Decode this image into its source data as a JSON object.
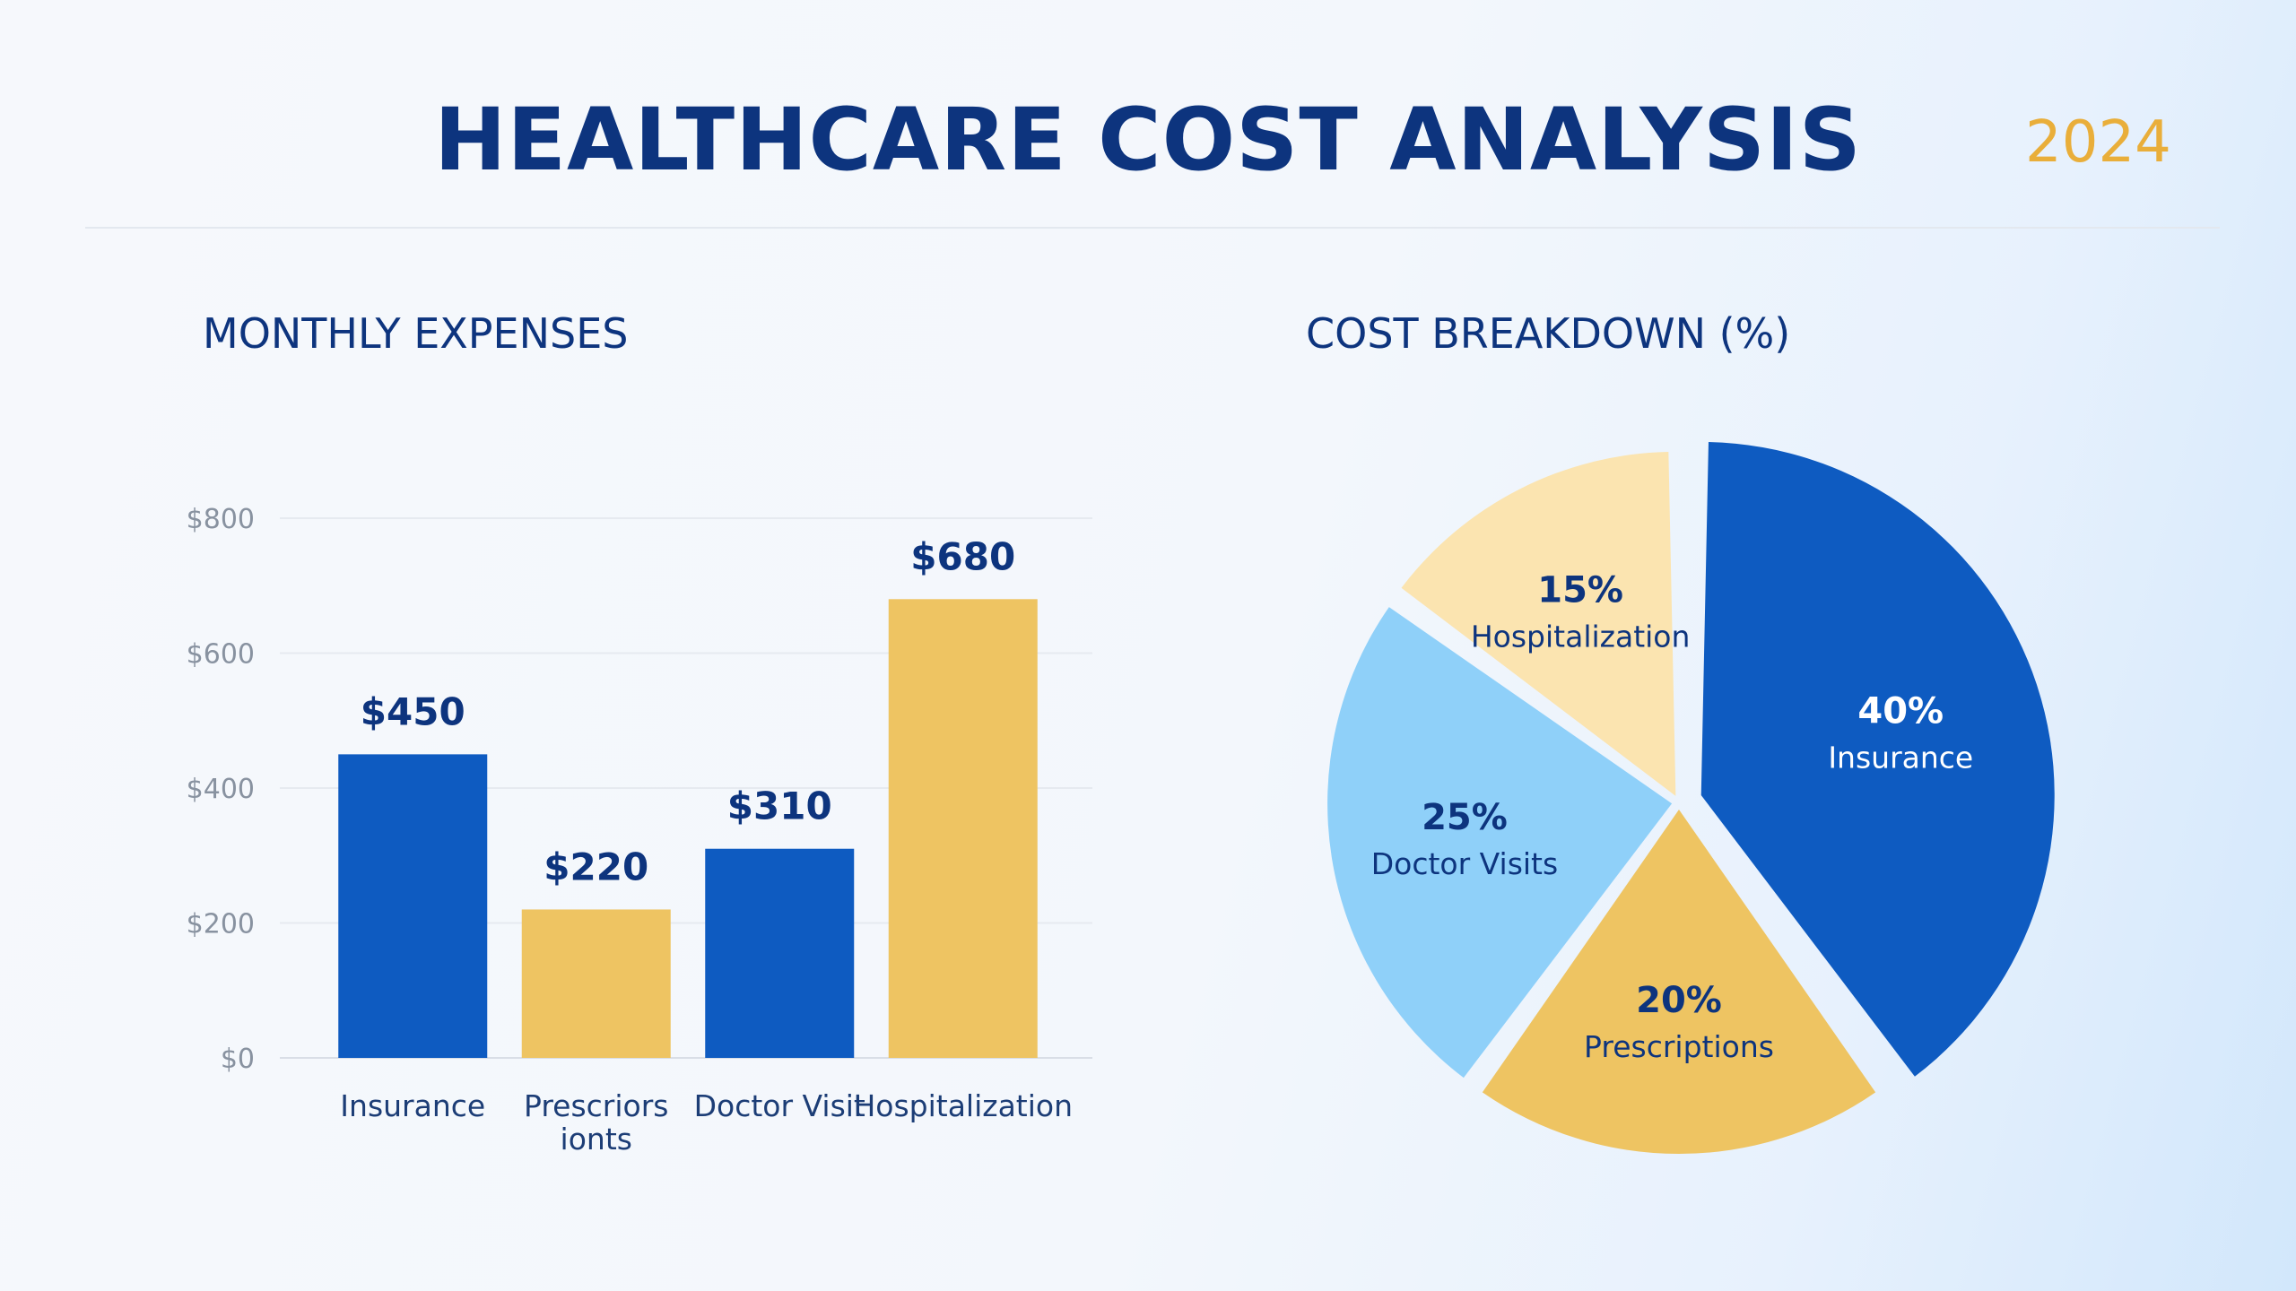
{
  "header": {
    "title": "HEALTHCARE COST ANALYSIS",
    "year": "2024"
  },
  "colors": {
    "title": "#0d347e",
    "year": "#e9ae3a",
    "blue": "#0e5bc1",
    "gold": "#eec462",
    "light_blue": "#8fd0f9",
    "pale_gold": "#fbe4b0"
  },
  "chart_data": [
    {
      "type": "bar",
      "title": "MONTHLY EXPENSES",
      "categories": [
        "Insurance",
        "Prescriptions",
        "Doctor Visit",
        "Hospitalization"
      ],
      "category_labels": [
        [
          "Insurance"
        ],
        [
          "Prescriors",
          "ionts"
        ],
        [
          "Doctor Visit"
        ],
        [
          "Hospitalization"
        ]
      ],
      "values": [
        450,
        220,
        310,
        680
      ],
      "value_labels": [
        "$450",
        "$220",
        "$310",
        "$680"
      ],
      "bar_colors": [
        "#0e5bc1",
        "#eec462",
        "#0e5bc1",
        "#eec462"
      ],
      "ylim": [
        0,
        800
      ],
      "yticks": [
        0,
        200,
        400,
        600,
        800
      ],
      "ytick_labels": [
        "$0",
        "$200",
        "$400",
        "$600",
        "$800"
      ],
      "grid": true
    },
    {
      "type": "pie",
      "title": "COST BREAKDOWN (%)",
      "slices": [
        {
          "label": "Insurance",
          "pct_label": "40%",
          "value": 40,
          "color": "#0e5bc1",
          "text_color": "#ffffff",
          "exploded": true
        },
        {
          "label": "Prescriptions",
          "pct_label": "20%",
          "value": 20,
          "color": "#eec462",
          "text_color": "#0d347e",
          "exploded": false
        },
        {
          "label": "Doctor Visits",
          "pct_label": "25%",
          "value": 25,
          "color": "#8fd0f9",
          "text_color": "#0d347e",
          "exploded": false
        },
        {
          "label": "Hospitalization",
          "pct_label": "15%",
          "value": 15,
          "color": "#fbe4b0",
          "text_color": "#0d347e",
          "exploded": false
        }
      ]
    }
  ]
}
